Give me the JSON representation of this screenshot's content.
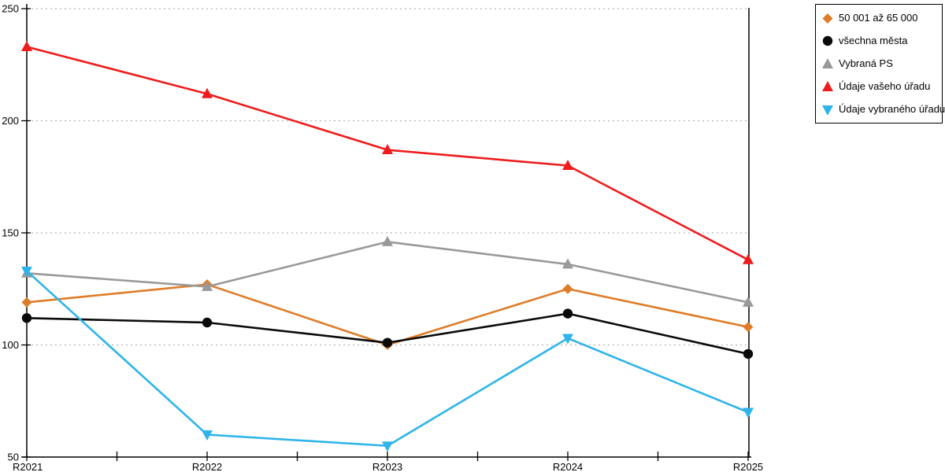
{
  "chart_data": {
    "type": "line",
    "title": "",
    "xlabel": "",
    "ylabel": "",
    "categories": [
      "R2021",
      "R2022",
      "R2023",
      "R2024",
      "R2025"
    ],
    "series": [
      {
        "name": "50 001 až 65 000",
        "marker": "diamond",
        "color": "#DF7C28",
        "values": [
          119,
          127,
          100,
          125,
          108
        ]
      },
      {
        "name": "všechna města",
        "marker": "circle",
        "color": "#0A0A0A",
        "values": [
          112,
          110,
          101,
          114,
          96
        ]
      },
      {
        "name": "Vybraná PS",
        "marker": "triangle-up",
        "color": "#999999",
        "values": [
          132,
          126,
          146,
          136,
          119
        ]
      },
      {
        "name": "Údaje vašeho úřadu",
        "marker": "triangle-up",
        "color": "#EE1C1C",
        "values": [
          233,
          212,
          187,
          180,
          138
        ]
      },
      {
        "name": "Údaje vybraného úřadu",
        "marker": "triangle-down",
        "color": "#2FB4E9",
        "values": [
          133,
          60,
          55,
          103,
          70
        ]
      }
    ],
    "ylim": [
      50,
      250
    ],
    "yticks": [
      50,
      100,
      150,
      200,
      250
    ],
    "grid": "horizontal-dotted",
    "gridline_color": "#b3b3b3",
    "axis_color": "#000000",
    "legend_position": "outside-top-right",
    "background_color": "#ffffff"
  }
}
